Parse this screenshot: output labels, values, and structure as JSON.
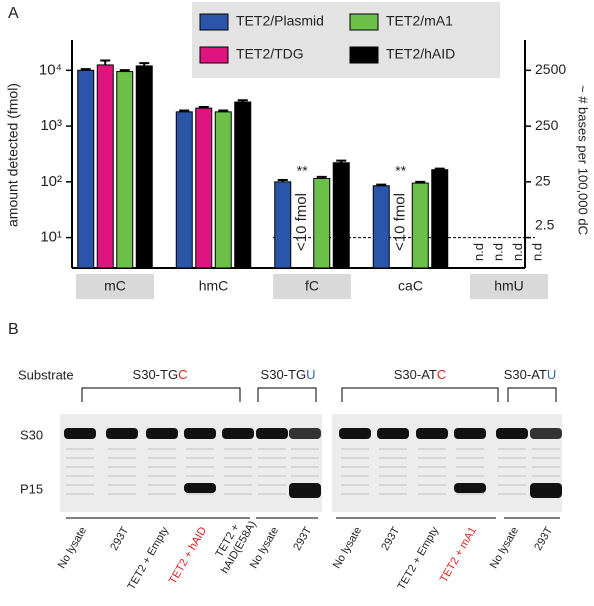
{
  "panel_labels": [
    "A",
    "B"
  ],
  "chart_data": {
    "type": "bar",
    "y_label": "amount detected (fmol)",
    "y2_label": "~ # bases per 100,000 dC",
    "categories": [
      "mC",
      "hmC",
      "fC",
      "caC",
      "hmU"
    ],
    "log_scale": true,
    "ylim": [
      2.85,
      35000
    ],
    "yticks": [
      {
        "value": 10,
        "label": "10¹"
      },
      {
        "value": 100,
        "label": "10²"
      },
      {
        "value": 1000,
        "label": "10³"
      },
      {
        "value": 10000,
        "label": "10⁴"
      }
    ],
    "y2lim": [
      0.7125,
      8750
    ],
    "y2ticks": [
      2.5,
      25,
      250,
      2500
    ],
    "threshold": 10,
    "legend": "top",
    "series": [
      {
        "name": "TET2/Plasmid",
        "color": "#2a55a8",
        "values": [
          10000,
          1800,
          100,
          85,
          null
        ],
        "errors": [
          500,
          100,
          8,
          4,
          null
        ],
        "value_labels": [
          null,
          null,
          null,
          null,
          "n.d"
        ]
      },
      {
        "name": "TET2/TDG",
        "color": "#e0147f",
        "values": [
          12500,
          2100,
          null,
          null,
          null
        ],
        "errors": [
          2500,
          100,
          null,
          null,
          null
        ],
        "value_labels": [
          null,
          null,
          "<10 fmol",
          "<10 fmol",
          "n.d"
        ]
      },
      {
        "name": "TET2/mA1",
        "color": "#6cc04a",
        "values": [
          9500,
          1800,
          115,
          95,
          null
        ],
        "errors": [
          600,
          100,
          8,
          5,
          null
        ],
        "value_labels": [
          null,
          null,
          null,
          null,
          "n.d"
        ]
      },
      {
        "name": "TET2/hAID",
        "color": "#000000",
        "values": [
          12000,
          2700,
          220,
          165,
          null
        ],
        "errors": [
          1500,
          200,
          20,
          8,
          null
        ],
        "value_labels": [
          null,
          null,
          null,
          null,
          "n.d"
        ]
      }
    ],
    "annotations": [
      {
        "text": "**",
        "category": "fC"
      },
      {
        "text": "**",
        "category": "caC"
      }
    ]
  },
  "gel": {
    "substrate_label": "Substrate",
    "groups": [
      {
        "prefix": "S30-TG",
        "base": "C"
      },
      {
        "prefix": "S30-TG",
        "base": "U"
      },
      {
        "prefix": "S30-AT",
        "base": "C"
      },
      {
        "prefix": "S30-AT",
        "base": "U"
      }
    ],
    "band_labels": [
      "S30",
      "P15"
    ],
    "lanes": [
      [
        "No lysate"
      ],
      [
        "293T"
      ],
      [
        "TET2 + Empty"
      ],
      [
        "TET2 + hAID"
      ],
      [
        "TET2 +",
        "hAID(E58A)"
      ],
      [
        "No lysate"
      ],
      [
        "293T"
      ],
      [
        "No lysate"
      ],
      [
        "293T"
      ],
      [
        "TET2 + Empty"
      ],
      [
        "TET2 + mA1"
      ],
      [
        "No lysate"
      ],
      [
        "293T"
      ]
    ]
  }
}
